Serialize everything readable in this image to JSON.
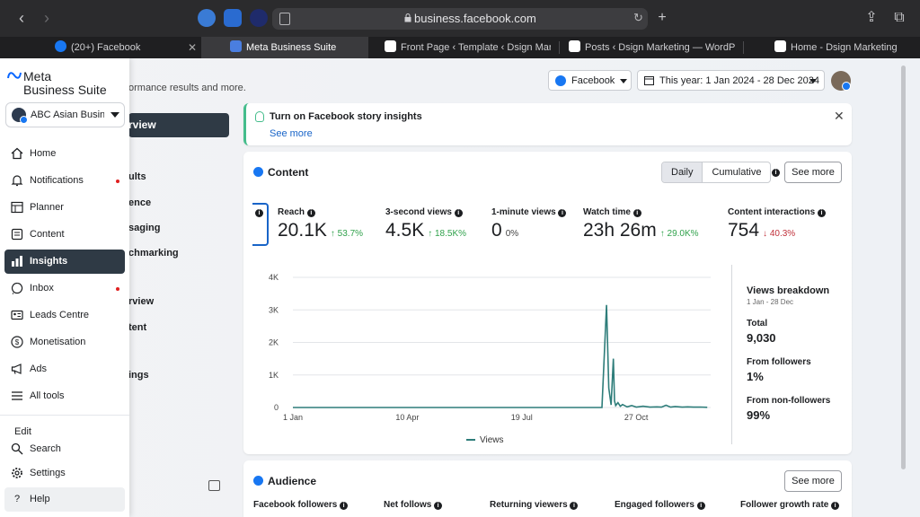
{
  "browser": {
    "url": "business.facebook.com",
    "tabs": [
      {
        "label": "(20+) Facebook"
      },
      {
        "label": "Meta Business Suite"
      },
      {
        "label": "Front Page ‹ Template ‹ Dsign Marketi..."
      },
      {
        "label": "Posts ‹ Dsign Marketing — WordPress"
      },
      {
        "label": "Home - Dsign Marketing"
      }
    ]
  },
  "sidebar": {
    "logo_line1": "Meta",
    "logo_line2": "Business Suite",
    "account": "ABC Asian Busin...",
    "items": [
      {
        "label": "Home"
      },
      {
        "label": "Notifications"
      },
      {
        "label": "Planner"
      },
      {
        "label": "Content"
      },
      {
        "label": "Insights"
      },
      {
        "label": "Inbox"
      },
      {
        "label": "Leads Centre"
      },
      {
        "label": "Monetisation"
      },
      {
        "label": "Ads"
      },
      {
        "label": "All tools"
      }
    ],
    "edit_label": "Edit",
    "search_label": "Search",
    "settings_label": "Settings",
    "help_label": "Help"
  },
  "underlay": {
    "subtitle": "ormance results and more.",
    "overview": "rview",
    "items": [
      "ults",
      "ence",
      "saging",
      "chmarking",
      "rview",
      "tent",
      "ings"
    ]
  },
  "controls": {
    "platform": "Facebook",
    "date_range": "This year: 1 Jan 2024 - 28 Dec 2024"
  },
  "tip": {
    "title": "Turn on Facebook story insights",
    "link": "See more"
  },
  "content": {
    "title": "Content",
    "toggle_daily": "Daily",
    "toggle_cumulative": "Cumulative",
    "see_more": "See more",
    "metrics": [
      {
        "label": "Reach",
        "value": "20.1K",
        "change": "↑ 53.7%",
        "dir": "up"
      },
      {
        "label": "3-second views",
        "value": "4.5K",
        "change": "↑ 18.5K%",
        "dir": "up"
      },
      {
        "label": "1-minute views",
        "value": "0",
        "change": "0%",
        "dir": "flat"
      },
      {
        "label": "Watch time",
        "value": "23h 26m",
        "change": "↑ 29.0K%",
        "dir": "up"
      },
      {
        "label": "Content interactions",
        "value": "754",
        "change": "↓ 40.3%",
        "dir": "down"
      }
    ],
    "breakdown": {
      "title": "Views breakdown",
      "subtitle": "1 Jan - 28 Dec",
      "total_label": "Total",
      "total_value": "9,030",
      "followers_label": "From followers",
      "followers_value": "1%",
      "nonfollowers_label": "From non-followers",
      "nonfollowers_value": "99%"
    }
  },
  "chart_data": {
    "type": "line",
    "title": "",
    "xlabel": "",
    "ylabel": "",
    "ylim": [
      0,
      4000
    ],
    "yticks": [
      "0",
      "1K",
      "2K",
      "3K",
      "4K"
    ],
    "xticks": [
      "1 Jan",
      "10 Apr",
      "19 Jul",
      "27 Oct"
    ],
    "series": [
      {
        "name": "Views",
        "color": "#2e7d7a",
        "x": [
          0,
          240,
          270,
          274,
          276,
          278,
          280,
          281,
          282,
          284,
          286,
          288,
          292,
          296,
          300,
          306,
          312,
          318,
          322,
          326,
          330,
          334,
          340,
          345,
          350,
          356,
          362
        ],
        "values": [
          0,
          0,
          0,
          3150,
          600,
          80,
          1500,
          200,
          60,
          150,
          40,
          90,
          20,
          60,
          15,
          40,
          10,
          20,
          10,
          70,
          10,
          30,
          10,
          20,
          10,
          15,
          5
        ]
      }
    ]
  },
  "audience": {
    "title": "Audience",
    "see_more": "See more",
    "metrics": [
      "Facebook followers",
      "Net follows",
      "Returning viewers",
      "Engaged followers",
      "Follower growth rate"
    ]
  }
}
